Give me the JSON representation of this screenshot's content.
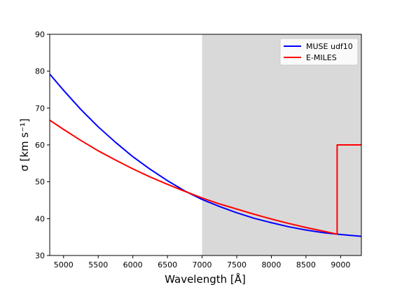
{
  "chart_data": {
    "type": "line",
    "title": "",
    "xlabel": "Wavelength [Å]",
    "ylabel": "σ [km s⁻¹]",
    "xlim": [
      4800,
      9300
    ],
    "ylim": [
      30,
      90
    ],
    "xticks": [
      5000,
      5500,
      6000,
      6500,
      7000,
      7500,
      8000,
      8500,
      9000
    ],
    "yticks": [
      30,
      40,
      50,
      60,
      70,
      80,
      90
    ],
    "grid": false,
    "legend_position": "top-right",
    "shaded_region": {
      "x_start": 7000,
      "x_end": 9300,
      "color": "#d9d9d9"
    },
    "series": [
      {
        "name": "MUSE udf10",
        "color": "#0000ff",
        "x": [
          4800,
          5000,
          5250,
          5500,
          5750,
          6000,
          6250,
          6500,
          6750,
          7000,
          7250,
          7500,
          7750,
          8000,
          8250,
          8500,
          8750,
          9000,
          9300
        ],
        "y": [
          79.2,
          74.8,
          69.6,
          64.9,
          60.7,
          56.8,
          53.4,
          50.3,
          47.5,
          45.2,
          43.3,
          41.6,
          40.1,
          38.9,
          37.8,
          36.9,
          36.2,
          35.7,
          35.2
        ]
      },
      {
        "name": "E-MILES",
        "color": "#ff0000",
        "x": [
          4800,
          5000,
          5250,
          5500,
          5750,
          6000,
          6250,
          6500,
          6750,
          7000,
          7250,
          7500,
          7750,
          8000,
          8250,
          8500,
          8750,
          8950,
          8950,
          9300
        ],
        "y": [
          66.7,
          64.2,
          61.2,
          58.4,
          55.9,
          53.5,
          51.3,
          49.3,
          47.4,
          45.6,
          44.0,
          42.6,
          41.2,
          39.9,
          38.7,
          37.6,
          36.6,
          35.8,
          60.0,
          60.0
        ]
      }
    ]
  }
}
